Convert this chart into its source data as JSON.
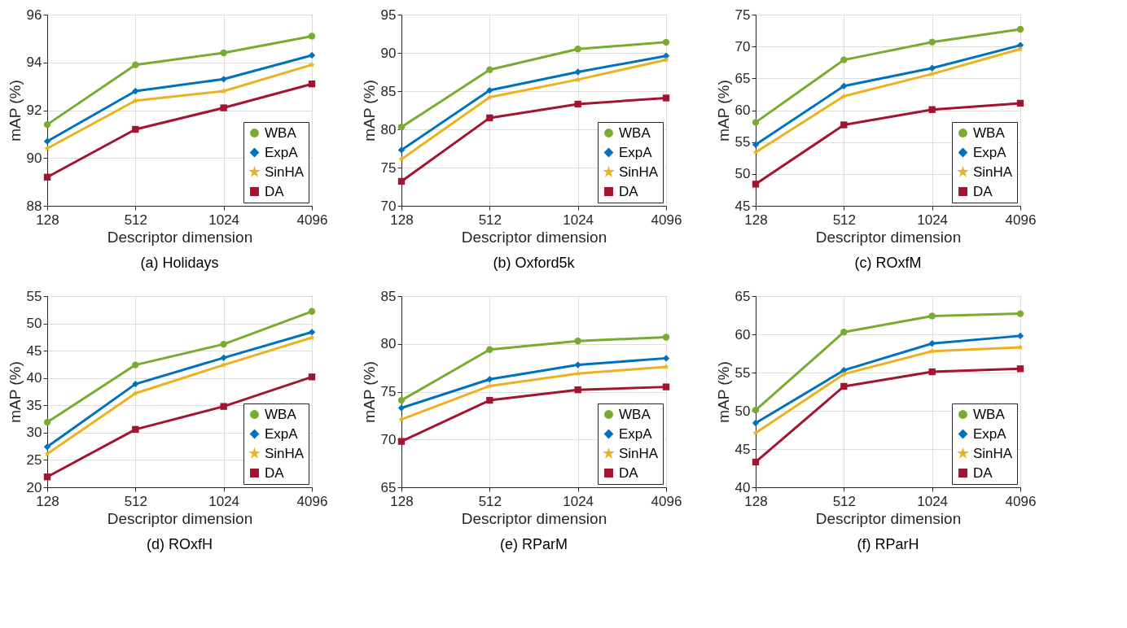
{
  "chart_data": [
    {
      "type": "line",
      "title": "(a) Holidays",
      "xlabel": "Descriptor dimension",
      "ylabel": "mAP (%)",
      "categories": [
        "128",
        "512",
        "1024",
        "4096"
      ],
      "ylim": [
        88,
        96
      ],
      "yticks": [
        88,
        90,
        92,
        94,
        96
      ],
      "grid": true,
      "legend": "bottom right",
      "series": [
        {
          "name": "WBA",
          "color": "#77ac30",
          "marker": "circle",
          "values": [
            91.4,
            93.9,
            94.4,
            95.1
          ]
        },
        {
          "name": "ExpA",
          "color": "#0072bd",
          "marker": "diamond",
          "values": [
            90.7,
            92.8,
            93.3,
            94.3
          ]
        },
        {
          "name": "SinHA",
          "color": "#edb120",
          "marker": "star",
          "values": [
            90.4,
            92.4,
            92.8,
            93.9
          ]
        },
        {
          "name": "DA",
          "color": "#a2142f",
          "marker": "square",
          "values": [
            89.2,
            91.2,
            92.1,
            93.1
          ]
        }
      ]
    },
    {
      "type": "line",
      "title": "(b) Oxford5k",
      "xlabel": "Descriptor dimension",
      "ylabel": "mAP (%)",
      "categories": [
        "128",
        "512",
        "1024",
        "4096"
      ],
      "ylim": [
        70,
        95
      ],
      "yticks": [
        70,
        75,
        80,
        85,
        90,
        95
      ],
      "grid": true,
      "legend": "bottom right",
      "series": [
        {
          "name": "WBA",
          "color": "#77ac30",
          "marker": "circle",
          "values": [
            80.3,
            87.8,
            90.5,
            91.4
          ]
        },
        {
          "name": "ExpA",
          "color": "#0072bd",
          "marker": "diamond",
          "values": [
            77.3,
            85.1,
            87.5,
            89.6
          ]
        },
        {
          "name": "SinHA",
          "color": "#edb120",
          "marker": "star",
          "values": [
            76.1,
            84.2,
            86.5,
            89.1
          ]
        },
        {
          "name": "DA",
          "color": "#a2142f",
          "marker": "square",
          "values": [
            73.2,
            81.5,
            83.3,
            84.1
          ]
        }
      ]
    },
    {
      "type": "line",
      "title": "(c) ROxfM",
      "xlabel": "Descriptor dimension",
      "ylabel": "mAP (%)",
      "categories": [
        "128",
        "512",
        "1024",
        "4096"
      ],
      "ylim": [
        45,
        75
      ],
      "yticks": [
        45,
        50,
        55,
        60,
        65,
        70,
        75
      ],
      "grid": true,
      "legend": "bottom right",
      "series": [
        {
          "name": "WBA",
          "color": "#77ac30",
          "marker": "circle",
          "values": [
            58.1,
            67.9,
            70.7,
            72.7
          ]
        },
        {
          "name": "ExpA",
          "color": "#0072bd",
          "marker": "diamond",
          "values": [
            54.6,
            63.8,
            66.6,
            70.2
          ]
        },
        {
          "name": "SinHA",
          "color": "#edb120",
          "marker": "star",
          "values": [
            53.4,
            62.2,
            65.7,
            69.6
          ]
        },
        {
          "name": "DA",
          "color": "#a2142f",
          "marker": "square",
          "values": [
            48.4,
            57.7,
            60.1,
            61.1
          ]
        }
      ]
    },
    {
      "type": "line",
      "title": "(d) ROxfH",
      "xlabel": "Descriptor dimension",
      "ylabel": "mAP (%)",
      "categories": [
        "128",
        "512",
        "1024",
        "4096"
      ],
      "ylim": [
        20,
        55
      ],
      "yticks": [
        20,
        25,
        30,
        35,
        40,
        45,
        50,
        55
      ],
      "grid": true,
      "legend": "bottom right",
      "series": [
        {
          "name": "WBA",
          "color": "#77ac30",
          "marker": "circle",
          "values": [
            31.9,
            42.4,
            46.2,
            52.2
          ]
        },
        {
          "name": "ExpA",
          "color": "#0072bd",
          "marker": "diamond",
          "values": [
            27.4,
            38.9,
            43.7,
            48.4
          ]
        },
        {
          "name": "SinHA",
          "color": "#edb120",
          "marker": "star",
          "values": [
            26.1,
            37.2,
            42.4,
            47.4
          ]
        },
        {
          "name": "DA",
          "color": "#a2142f",
          "marker": "square",
          "values": [
            21.9,
            30.6,
            34.8,
            40.2
          ]
        }
      ]
    },
    {
      "type": "line",
      "title": "(e) RParM",
      "xlabel": "Descriptor dimension",
      "ylabel": "mAP (%)",
      "categories": [
        "128",
        "512",
        "1024",
        "4096"
      ],
      "ylim": [
        65,
        85
      ],
      "yticks": [
        65,
        70,
        75,
        80,
        85
      ],
      "grid": true,
      "legend": "bottom right",
      "series": [
        {
          "name": "WBA",
          "color": "#77ac30",
          "marker": "circle",
          "values": [
            74.1,
            79.4,
            80.3,
            80.7
          ]
        },
        {
          "name": "ExpA",
          "color": "#0072bd",
          "marker": "diamond",
          "values": [
            73.3,
            76.3,
            77.8,
            78.5
          ]
        },
        {
          "name": "SinHA",
          "color": "#edb120",
          "marker": "star",
          "values": [
            72.1,
            75.6,
            76.9,
            77.6
          ]
        },
        {
          "name": "DA",
          "color": "#a2142f",
          "marker": "square",
          "values": [
            69.8,
            74.1,
            75.2,
            75.5
          ]
        }
      ]
    },
    {
      "type": "line",
      "title": "(f) RParH",
      "xlabel": "Descriptor dimension",
      "ylabel": "mAP (%)",
      "categories": [
        "128",
        "512",
        "1024",
        "4096"
      ],
      "ylim": [
        40,
        65
      ],
      "yticks": [
        40,
        45,
        50,
        55,
        60,
        65
      ],
      "grid": true,
      "legend": "bottom right",
      "series": [
        {
          "name": "WBA",
          "color": "#77ac30",
          "marker": "circle",
          "values": [
            50.1,
            60.3,
            62.4,
            62.7
          ]
        },
        {
          "name": "ExpA",
          "color": "#0072bd",
          "marker": "diamond",
          "values": [
            48.4,
            55.3,
            58.8,
            59.8
          ]
        },
        {
          "name": "SinHA",
          "color": "#edb120",
          "marker": "star",
          "values": [
            47.1,
            54.8,
            57.8,
            58.3
          ]
        },
        {
          "name": "DA",
          "color": "#a2142f",
          "marker": "square",
          "values": [
            43.3,
            53.2,
            55.1,
            55.5
          ]
        }
      ]
    }
  ]
}
